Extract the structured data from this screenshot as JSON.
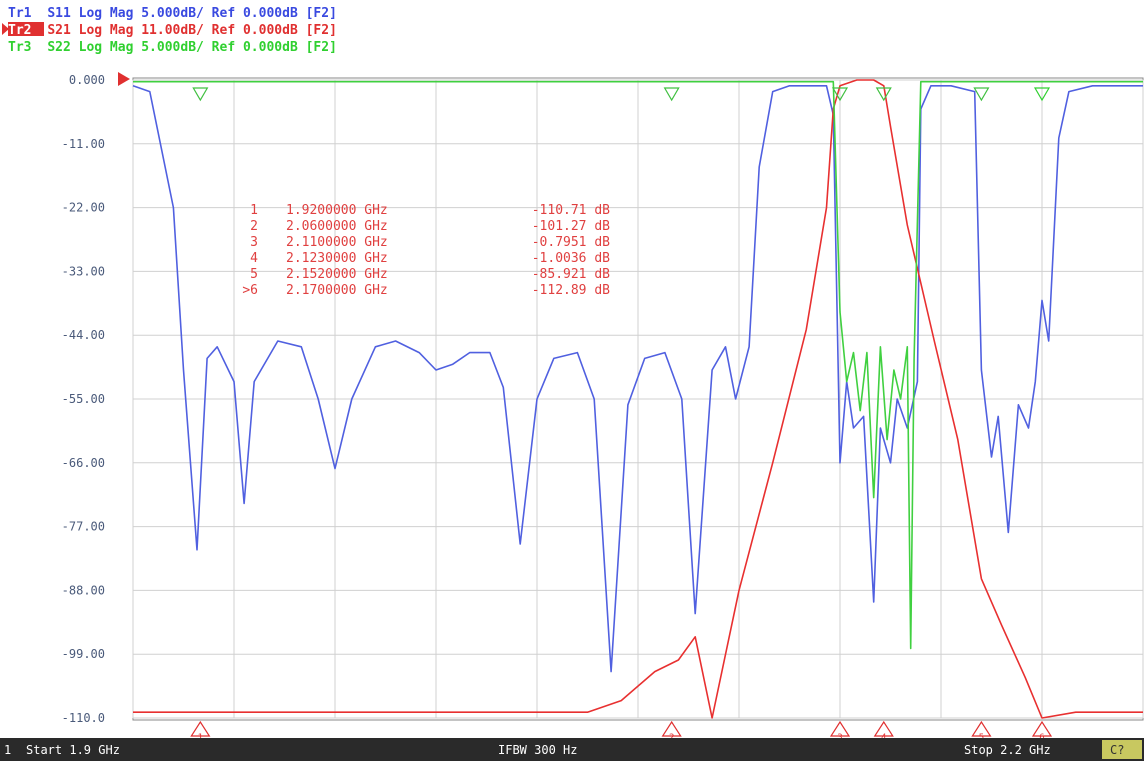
{
  "header": {
    "traces": [
      {
        "id": "Tr1",
        "text": "S11 Log Mag 5.000dB/ Ref 0.000dB [F2]",
        "color": "#3a4ae0",
        "active": false
      },
      {
        "id": "Tr2",
        "text": "S21 Log Mag 11.00dB/ Ref 0.000dB [F2]",
        "color": "#e03030",
        "active": true
      },
      {
        "id": "Tr3",
        "text": "S22 Log Mag 5.000dB/ Ref 0.000dB [F2]",
        "color": "#30d030",
        "active": false
      }
    ]
  },
  "footer": {
    "channel": "1",
    "start": "Start 1.9 GHz",
    "ifbw": "IFBW 300 Hz",
    "stop": "Stop 2.2 GHz",
    "badge": "C?"
  },
  "chart_data": {
    "type": "line",
    "xlim": [
      1.9,
      2.2
    ],
    "ylim": [
      -110,
      0
    ],
    "y_ticks": [
      "0.000",
      "-11.00",
      "-22.00",
      "-33.00",
      "-44.00",
      "-55.00",
      "-66.00",
      "-77.00",
      "-88.00",
      "-99.00",
      "-110.0"
    ],
    "grid": true,
    "markers": [
      {
        "num": "1",
        "freq": "1.9200000 GHz",
        "val": "-110.71 dB",
        "x": 1.92
      },
      {
        "num": "2",
        "freq": "2.0600000 GHz",
        "val": "-101.27 dB",
        "x": 2.06
      },
      {
        "num": "3",
        "freq": "2.1100000 GHz",
        "val": "-0.7951 dB",
        "x": 2.11
      },
      {
        "num": "4",
        "freq": "2.1230000 GHz",
        "val": "-1.0036 dB",
        "x": 2.123
      },
      {
        "num": "5",
        "freq": "2.1520000 GHz",
        "val": "-85.921 dB",
        "x": 2.152
      },
      {
        "num": ">6",
        "freq": "2.1700000 GHz",
        "val": "-112.89 dB",
        "x": 2.17
      }
    ],
    "series": [
      {
        "color": "#5060e0",
        "points": [
          [
            1.9,
            -1
          ],
          [
            1.905,
            -2
          ],
          [
            1.912,
            -22
          ],
          [
            1.915,
            -50
          ],
          [
            1.919,
            -81
          ],
          [
            1.922,
            -48
          ],
          [
            1.925,
            -46
          ],
          [
            1.93,
            -52
          ],
          [
            1.933,
            -73
          ],
          [
            1.936,
            -52
          ],
          [
            1.943,
            -45
          ],
          [
            1.95,
            -46
          ],
          [
            1.955,
            -55
          ],
          [
            1.96,
            -67
          ],
          [
            1.965,
            -55
          ],
          [
            1.972,
            -46
          ],
          [
            1.978,
            -45
          ],
          [
            1.985,
            -47
          ],
          [
            1.99,
            -50
          ],
          [
            1.995,
            -49
          ],
          [
            2.0,
            -47
          ],
          [
            2.006,
            -47
          ],
          [
            2.01,
            -53
          ],
          [
            2.015,
            -80
          ],
          [
            2.02,
            -55
          ],
          [
            2.025,
            -48
          ],
          [
            2.032,
            -47
          ],
          [
            2.037,
            -55
          ],
          [
            2.042,
            -102
          ],
          [
            2.047,
            -56
          ],
          [
            2.052,
            -48
          ],
          [
            2.058,
            -47
          ],
          [
            2.063,
            -55
          ],
          [
            2.067,
            -92
          ],
          [
            2.072,
            -50
          ],
          [
            2.076,
            -46
          ],
          [
            2.079,
            -55
          ],
          [
            2.083,
            -46
          ],
          [
            2.086,
            -15
          ],
          [
            2.09,
            -2
          ],
          [
            2.095,
            -1
          ],
          [
            2.1,
            -1
          ],
          [
            2.106,
            -1
          ],
          [
            2.108,
            -6
          ],
          [
            2.11,
            -66
          ],
          [
            2.112,
            -52
          ],
          [
            2.114,
            -60
          ],
          [
            2.117,
            -58
          ],
          [
            2.12,
            -90
          ],
          [
            2.122,
            -60
          ],
          [
            2.125,
            -66
          ],
          [
            2.127,
            -55
          ],
          [
            2.13,
            -60
          ],
          [
            2.133,
            -52
          ],
          [
            2.134,
            -5
          ],
          [
            2.137,
            -1
          ],
          [
            2.143,
            -1
          ],
          [
            2.15,
            -2
          ],
          [
            2.152,
            -50
          ],
          [
            2.155,
            -65
          ],
          [
            2.157,
            -58
          ],
          [
            2.16,
            -78
          ],
          [
            2.163,
            -56
          ],
          [
            2.166,
            -60
          ],
          [
            2.168,
            -52
          ],
          [
            2.17,
            -38
          ],
          [
            2.172,
            -45
          ],
          [
            2.175,
            -10
          ],
          [
            2.178,
            -2
          ],
          [
            2.185,
            -1
          ],
          [
            2.2,
            -1
          ]
        ]
      },
      {
        "color": "#e83030",
        "points": [
          [
            1.9,
            -109
          ],
          [
            1.92,
            -109
          ],
          [
            1.94,
            -109
          ],
          [
            1.96,
            -109
          ],
          [
            1.98,
            -109
          ],
          [
            2.0,
            -109
          ],
          [
            2.02,
            -109
          ],
          [
            2.035,
            -109
          ],
          [
            2.045,
            -107
          ],
          [
            2.055,
            -102
          ],
          [
            2.062,
            -100
          ],
          [
            2.067,
            -96
          ],
          [
            2.072,
            -110
          ],
          [
            2.08,
            -88
          ],
          [
            2.09,
            -66
          ],
          [
            2.1,
            -43
          ],
          [
            2.106,
            -22
          ],
          [
            2.108,
            -5
          ],
          [
            2.11,
            -1
          ],
          [
            2.115,
            0
          ],
          [
            2.12,
            0
          ],
          [
            2.123,
            -1
          ],
          [
            2.125,
            -8
          ],
          [
            2.13,
            -25
          ],
          [
            2.138,
            -45
          ],
          [
            2.145,
            -62
          ],
          [
            2.152,
            -86
          ],
          [
            2.158,
            -94
          ],
          [
            2.165,
            -103
          ],
          [
            2.17,
            -110
          ],
          [
            2.18,
            -109
          ],
          [
            2.2,
            -109
          ]
        ]
      },
      {
        "color": "#40d040",
        "points": [
          [
            1.9,
            -0.3
          ],
          [
            2.0,
            -0.3
          ],
          [
            2.06,
            -0.3
          ],
          [
            2.108,
            -0.3
          ],
          [
            2.11,
            -40
          ],
          [
            2.112,
            -52
          ],
          [
            2.114,
            -47
          ],
          [
            2.116,
            -57
          ],
          [
            2.118,
            -47
          ],
          [
            2.12,
            -72
          ],
          [
            2.122,
            -46
          ],
          [
            2.124,
            -62
          ],
          [
            2.126,
            -50
          ],
          [
            2.128,
            -55
          ],
          [
            2.13,
            -46
          ],
          [
            2.131,
            -98
          ],
          [
            2.132,
            -48
          ],
          [
            2.134,
            -0.3
          ],
          [
            2.17,
            -0.3
          ],
          [
            2.2,
            -0.3
          ]
        ]
      }
    ]
  }
}
